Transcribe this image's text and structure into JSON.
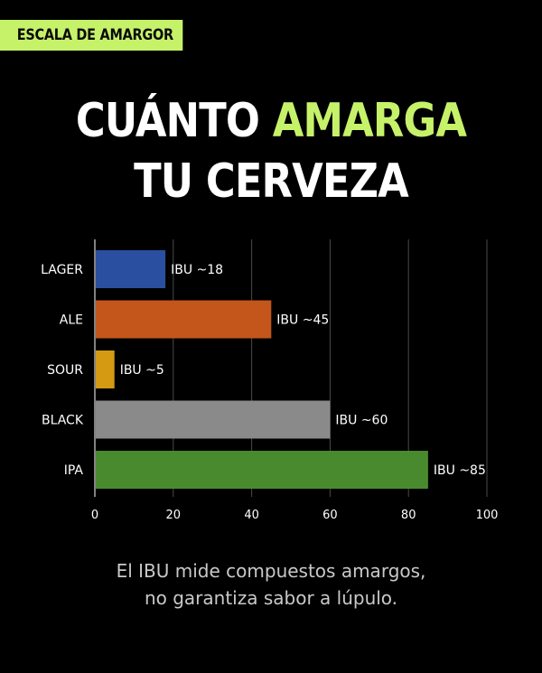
{
  "tag": "ESCALA DE AMARGOR",
  "title": {
    "line1_part1": "CUÁNTO",
    "line1_highlight": "AMARGA",
    "line2": "TU CERVEZA"
  },
  "colors": {
    "accent": "#c6f26a",
    "background": "#000000"
  },
  "chart_data": {
    "type": "bar",
    "orientation": "horizontal",
    "title": "",
    "xlabel": "",
    "ylabel": "",
    "categories": [
      "LAGER",
      "ALE",
      "SOUR",
      "BLACK",
      "IPA"
    ],
    "values": [
      18,
      45,
      5,
      60,
      85
    ],
    "data_labels": [
      "IBU ~18",
      "IBU ~45",
      "IBU ~5",
      "IBU ~60",
      "IBU ~85"
    ],
    "colors": [
      "#2b4fa0",
      "#c4561b",
      "#d39a12",
      "#8a8a8a",
      "#4a8a2e"
    ],
    "xlim": [
      0,
      100
    ],
    "xticks": [
      0,
      20,
      40,
      60,
      80,
      100
    ],
    "grid": true
  },
  "caption": {
    "line1": "El IBU mide compuestos amargos,",
    "line2": "no garantiza sabor a lúpulo."
  }
}
